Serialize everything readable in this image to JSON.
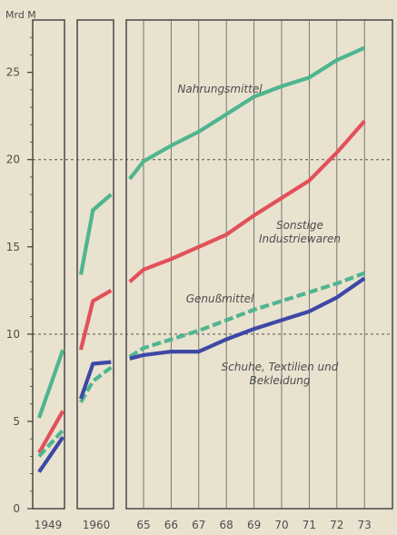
{
  "chart_data": {
    "type": "line",
    "ylabel": "Mrd M",
    "ylim": [
      0,
      28
    ],
    "yticks": [
      0,
      5,
      10,
      15,
      20,
      25
    ],
    "x_tick_labels": [
      "1949",
      "1960",
      "65",
      "66",
      "67",
      "68",
      "69",
      "70",
      "71",
      "72",
      "73"
    ],
    "dashed_gridlines_at": [
      10,
      20
    ],
    "series": [
      {
        "name": "Nahrungsmittel",
        "color": "#4fb58f",
        "style": "solid",
        "segments": [
          {
            "x": [
              1949,
              1950.5
            ],
            "y": [
              5.2,
              9.1
            ]
          },
          {
            "x": [
              1959,
              1960,
              1961.5
            ],
            "y": [
              13.4,
              17.1,
              18.0
            ]
          },
          {
            "x": [
              1964.5,
              1965,
              1966,
              1967,
              1968,
              1969,
              1970,
              1971,
              1972,
              1973
            ],
            "y": [
              18.9,
              19.9,
              20.8,
              21.6,
              22.6,
              23.6,
              24.2,
              24.7,
              25.7,
              26.4
            ]
          }
        ]
      },
      {
        "name": "Sonstige Industriewaren",
        "color": "#e2505a",
        "style": "solid",
        "segments": [
          {
            "x": [
              1949,
              1950.5
            ],
            "y": [
              3.2,
              5.6
            ]
          },
          {
            "x": [
              1959,
              1960,
              1961.5
            ],
            "y": [
              9.1,
              11.9,
              12.5
            ]
          },
          {
            "x": [
              1964.5,
              1965,
              1966,
              1967,
              1968,
              1969,
              1970,
              1971,
              1972,
              1973
            ],
            "y": [
              13.0,
              13.7,
              14.3,
              15.0,
              15.7,
              16.8,
              17.8,
              18.8,
              20.4,
              22.2
            ]
          }
        ]
      },
      {
        "name": "Genußmittel",
        "color": "#4fb58f",
        "style": "dashed",
        "segments": [
          {
            "x": [
              1949,
              1950.5
            ],
            "y": [
              3.0,
              4.5
            ]
          },
          {
            "x": [
              1959,
              1960,
              1961.5
            ],
            "y": [
              6.1,
              7.3,
              8.1
            ]
          },
          {
            "x": [
              1964.5,
              1965,
              1966,
              1967,
              1968,
              1969,
              1970,
              1971,
              1972,
              1973
            ],
            "y": [
              8.7,
              9.2,
              9.7,
              10.2,
              10.8,
              11.4,
              11.9,
              12.4,
              12.9,
              13.5
            ]
          }
        ]
      },
      {
        "name": "Schuhe, Textilien und Bekleidung",
        "color": "#3d48a6",
        "style": "solid",
        "segments": [
          {
            "x": [
              1949,
              1950.5
            ],
            "y": [
              2.1,
              4.1
            ]
          },
          {
            "x": [
              1959,
              1960,
              1961.5
            ],
            "y": [
              6.3,
              8.3,
              8.4
            ]
          },
          {
            "x": [
              1964.5,
              1965,
              1966,
              1967,
              1968,
              1969,
              1970,
              1971,
              1972,
              1973
            ],
            "y": [
              8.6,
              8.8,
              9.0,
              9.0,
              9.7,
              10.3,
              10.8,
              11.3,
              12.1,
              13.2
            ]
          }
        ]
      }
    ],
    "annotations": [
      {
        "lines": [
          "Nahrungsmittel"
        ]
      },
      {
        "lines": [
          "Sonstige",
          "Industriewaren"
        ]
      },
      {
        "lines": [
          "Genußmittel"
        ]
      },
      {
        "lines": [
          "Schuhe, Textilien und",
          "Bekleidung"
        ]
      }
    ]
  }
}
